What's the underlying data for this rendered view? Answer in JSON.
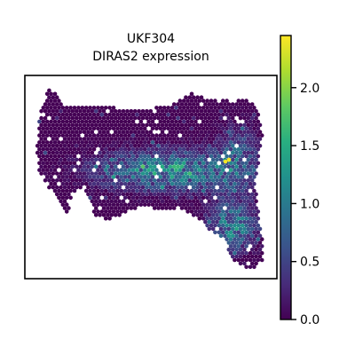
{
  "chart_data": {
    "type": "scatter",
    "subtype": "spatial-hexbin",
    "title_lines": [
      "UKF304",
      "DIRAS2 expression"
    ],
    "xlabel": "",
    "ylabel": "",
    "colorbar": {
      "colormap": "viridis",
      "range": [
        0.0,
        2.45
      ],
      "ticks": [
        0.0,
        0.5,
        1.0,
        1.5,
        2.0
      ],
      "tick_labels": [
        "0.0",
        "0.5",
        "1.0",
        "1.5",
        "2.0"
      ]
    },
    "axes_ticks_visible": false,
    "grid": false,
    "legend": "none",
    "spot_value_range": [
      0.0,
      2.45
    ]
  },
  "colors": {
    "low": "#440154",
    "mid_low": "#3b528b",
    "mid": "#21918c",
    "mid_high": "#5ec962",
    "high": "#fde725",
    "frame": "#000000",
    "background": "#ffffff"
  }
}
